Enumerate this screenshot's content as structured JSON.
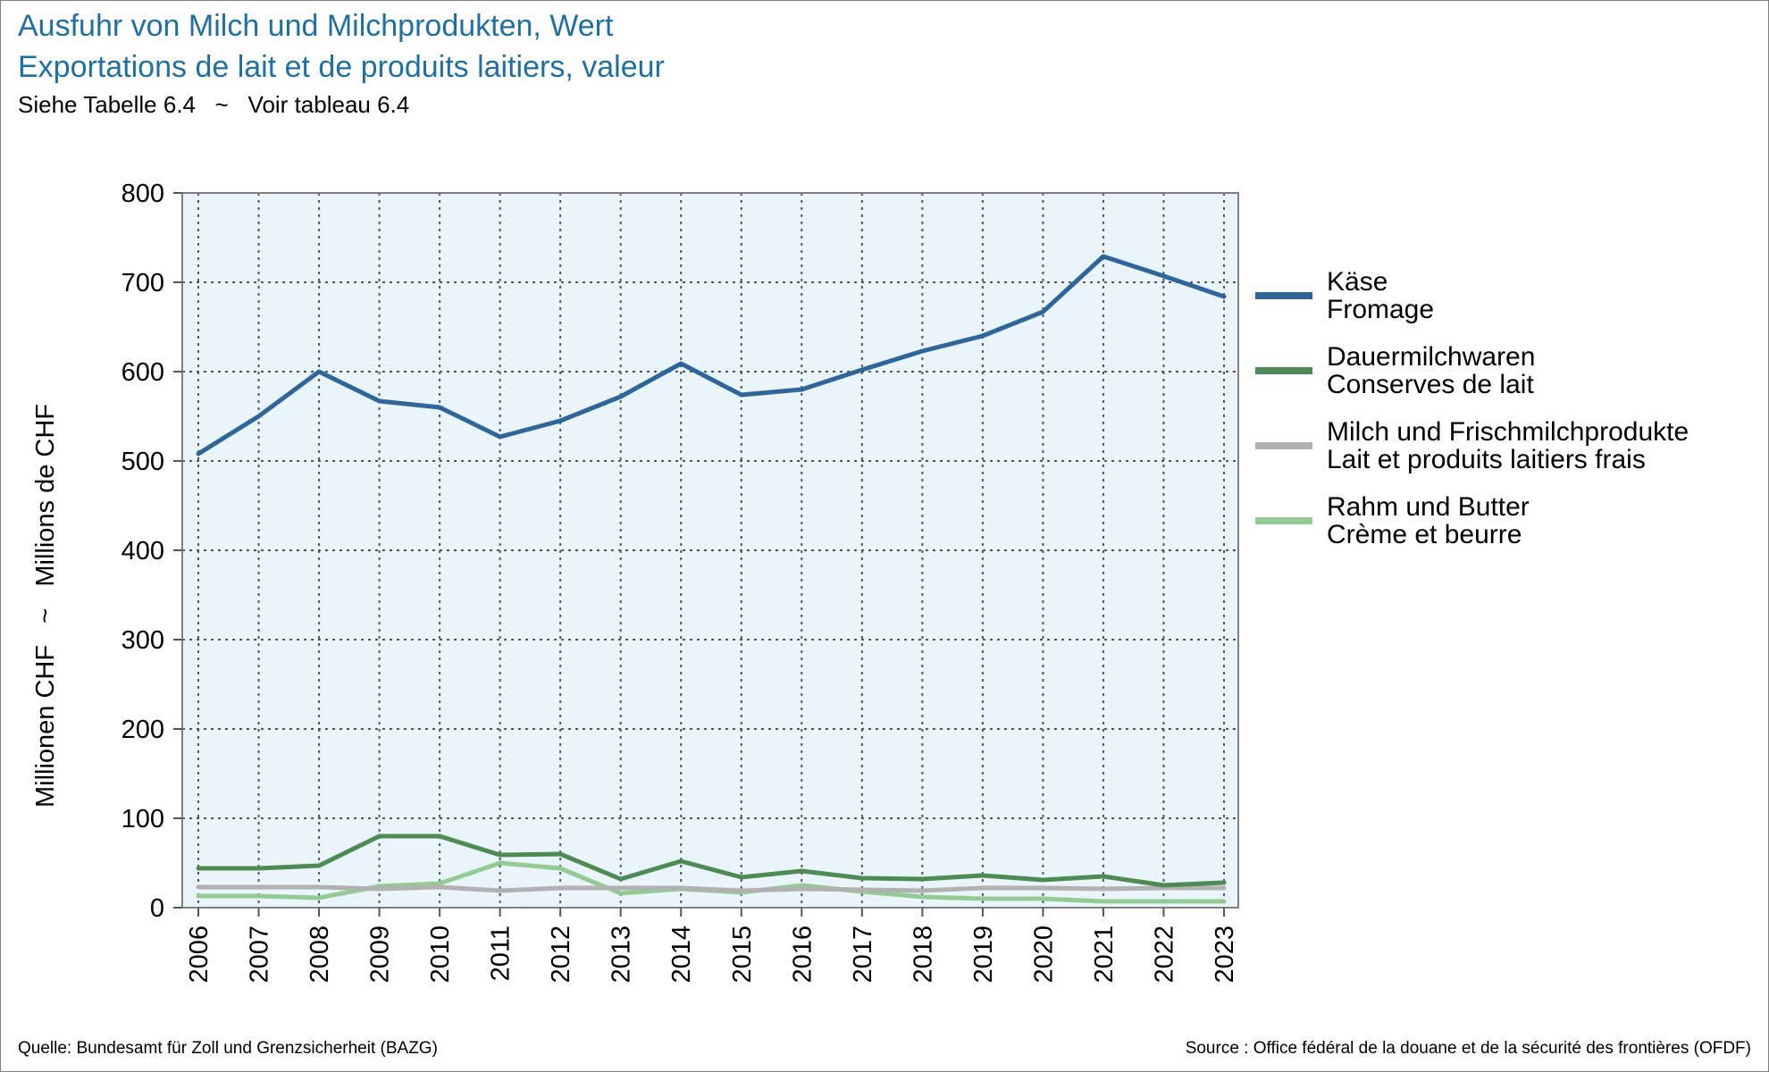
{
  "title": "Ausfuhr von Milch und Milchprodukten, Wert",
  "subtitle_fr": "Exportations de lait et de produits laitiers, valeur",
  "note": "Siehe Tabelle 6.4   ~   Voir tableau 6.4",
  "source_de": "Quelle: Bundesamt für Zoll und Grenzsicherheit (BAZG)",
  "source_fr": "Source : Office fédéral de la douane et de la sécurité des frontières (OFDF)",
  "colors": {
    "plot_bg": "#eaf4fb",
    "grid": "#555555",
    "axis": "#7f7f7f"
  },
  "chart_data": {
    "type": "line",
    "ylabel": "Millionen CHF   ~   Millions de CHF",
    "ylim": [
      0,
      800
    ],
    "yticks": [
      "0",
      "100",
      "200",
      "300",
      "400",
      "500",
      "600",
      "700",
      "800"
    ],
    "x": [
      "2006",
      "2007",
      "2008",
      "2009",
      "2010",
      "2011",
      "2012",
      "2013",
      "2014",
      "2015",
      "2016",
      "2017",
      "2018",
      "2019",
      "2020",
      "2021",
      "2022",
      "2023"
    ],
    "grid": true,
    "legend_position": "right",
    "series": [
      {
        "name": "Käse",
        "name_fr": "Fromage",
        "color": "#2f6598",
        "values": [
          508,
          550,
          600,
          567,
          560,
          527,
          545,
          572,
          609,
          574,
          580,
          602,
          623,
          640,
          667,
          729,
          707,
          684
        ]
      },
      {
        "name": "Dauermilchwaren",
        "name_fr": "Conserves de lait",
        "color": "#4e8b54",
        "values": [
          44,
          44,
          47,
          80,
          80,
          59,
          60,
          32,
          52,
          34,
          41,
          33,
          32,
          36,
          31,
          35,
          25,
          28
        ]
      },
      {
        "name": "Milch und Frischmilchprodukte",
        "name_fr": "Lait et produits laitiers frais",
        "color": "#b1b1b1",
        "values": [
          23,
          23,
          23,
          21,
          23,
          19,
          22,
          22,
          22,
          19,
          21,
          20,
          19,
          22,
          22,
          21,
          22,
          22
        ]
      },
      {
        "name": "Rahm und Butter",
        "name_fr": "Crème et beurre",
        "color": "#94cb94",
        "values": [
          13,
          13,
          11,
          24,
          27,
          50,
          44,
          16,
          21,
          17,
          25,
          18,
          12,
          10,
          10,
          7,
          7,
          7
        ]
      }
    ]
  }
}
